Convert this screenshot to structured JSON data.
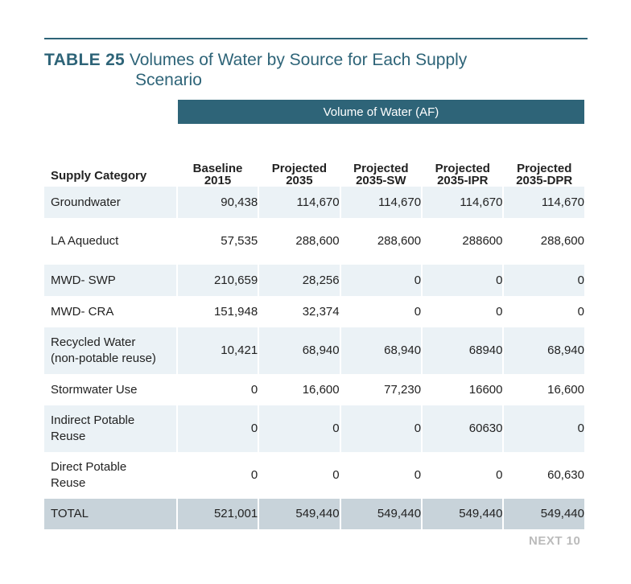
{
  "title": {
    "number": "TABLE 25",
    "text_line1": "Volumes of Water by Source for Each Supply",
    "text_line2": "Scenario"
  },
  "table": {
    "group_header": "Volume of Water (AF)",
    "columns": [
      {
        "line1": "Supply Category",
        "line2": ""
      },
      {
        "line1": "Baseline",
        "line2": "2015"
      },
      {
        "line1": "Projected",
        "line2": "2035"
      },
      {
        "line1": "Projected",
        "line2": "2035-SW"
      },
      {
        "line1": "Projected",
        "line2": "2035-IPR"
      },
      {
        "line1": "Projected",
        "line2": "2035-DPR"
      }
    ],
    "rows": [
      {
        "category": [
          "Groundwater"
        ],
        "values": [
          "90,438",
          "114,670",
          "114,670",
          "114,670",
          "114,670"
        ]
      },
      {
        "category": [
          "LA Aqueduct"
        ],
        "values": [
          "57,535",
          "288,600",
          "288,600",
          "288600",
          "288,600"
        ]
      },
      {
        "category": [
          "MWD- SWP"
        ],
        "values": [
          "210,659",
          "28,256",
          "0",
          "0",
          "0"
        ]
      },
      {
        "category": [
          "MWD- CRA"
        ],
        "values": [
          "151,948",
          "32,374",
          "0",
          "0",
          "0"
        ]
      },
      {
        "category": [
          "Recycled Water",
          "(non-potable reuse)"
        ],
        "values": [
          "10,421",
          "68,940",
          "68,940",
          "68940",
          "68,940"
        ]
      },
      {
        "category": [
          "Stormwater Use"
        ],
        "values": [
          "0",
          "16,600",
          "77,230",
          "16600",
          "16,600"
        ]
      },
      {
        "category": [
          "Indirect Potable",
          "Reuse"
        ],
        "values": [
          "0",
          "0",
          "0",
          "60630",
          "0"
        ]
      },
      {
        "category": [
          "Direct Potable",
          "Reuse"
        ],
        "values": [
          "0",
          "0",
          "0",
          "0",
          "60,630"
        ]
      }
    ],
    "total": {
      "label": "TOTAL",
      "values": [
        "521,001",
        "549,440",
        "549,440",
        "549,440",
        "549,440"
      ]
    }
  },
  "footer": {
    "brand": "NEXT 10"
  },
  "colors": {
    "accent": "#2e6478",
    "row_shade": "#ebf2f6",
    "total_shade": "#c8d3da"
  }
}
